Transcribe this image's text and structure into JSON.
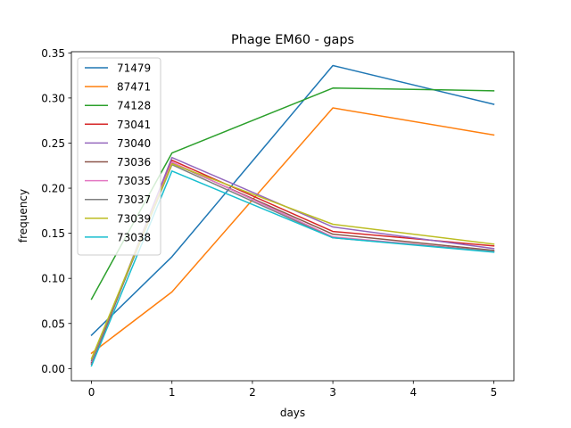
{
  "chart_data": {
    "type": "line",
    "title": "Phage EM60 - gaps",
    "xlabel": "days",
    "ylabel": "frequency",
    "x": [
      0,
      1,
      3,
      5
    ],
    "xlim": [
      -0.25,
      5.25
    ],
    "ylim": [
      -0.0135,
      0.3513
    ],
    "xticks": [
      "0",
      "1",
      "2",
      "3",
      "4",
      "5"
    ],
    "yticks": [
      "0.00",
      "0.05",
      "0.10",
      "0.15",
      "0.20",
      "0.25",
      "0.30",
      "0.35"
    ],
    "grid": false,
    "legend_position": "top-left",
    "series": [
      {
        "name": "71479",
        "color": "#1f77b4",
        "values": [
          0.037,
          0.124,
          0.336,
          0.293
        ]
      },
      {
        "name": "87471",
        "color": "#ff7f0e",
        "values": [
          0.017,
          0.085,
          0.289,
          0.259
        ]
      },
      {
        "name": "74128",
        "color": "#2ca02c",
        "values": [
          0.077,
          0.239,
          0.311,
          0.308
        ]
      },
      {
        "name": "73041",
        "color": "#d62728",
        "values": [
          0.005,
          0.231,
          0.152,
          0.136
        ]
      },
      {
        "name": "73040",
        "color": "#9467bd",
        "values": [
          0.006,
          0.234,
          0.157,
          0.133
        ]
      },
      {
        "name": "73036",
        "color": "#8c564b",
        "values": [
          0.007,
          0.228,
          0.149,
          0.131
        ]
      },
      {
        "name": "73035",
        "color": "#e377c2",
        "values": [
          0.008,
          0.229,
          0.146,
          0.13
        ]
      },
      {
        "name": "73037",
        "color": "#7f7f7f",
        "values": [
          0.009,
          0.226,
          0.145,
          0.13
        ]
      },
      {
        "name": "73039",
        "color": "#bcbd22",
        "values": [
          0.011,
          0.227,
          0.16,
          0.138
        ]
      },
      {
        "name": "73038",
        "color": "#17becf",
        "values": [
          0.003,
          0.219,
          0.145,
          0.129
        ]
      }
    ]
  }
}
